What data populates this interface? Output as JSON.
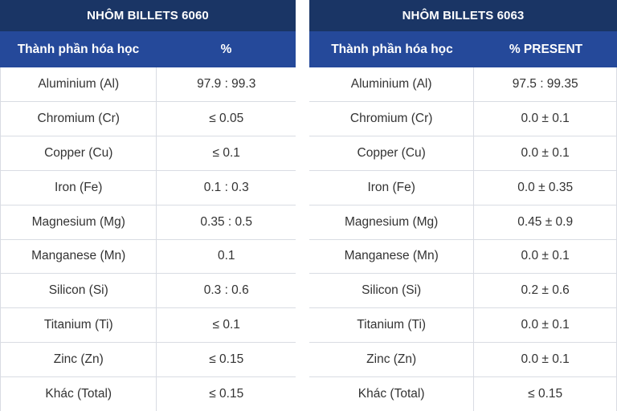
{
  "tables": [
    {
      "title": "NHÔM BILLETS 6060",
      "header": [
        "Thành phần hóa học",
        "%"
      ],
      "rows": [
        [
          "Aluminium (Al)",
          "97.9 : 99.3"
        ],
        [
          "Chromium (Cr)",
          "≤ 0.05"
        ],
        [
          "Copper (Cu)",
          "≤ 0.1"
        ],
        [
          "Iron (Fe)",
          "0.1 : 0.3"
        ],
        [
          "Magnesium (Mg)",
          "0.35 : 0.5"
        ],
        [
          "Manganese (Mn)",
          "0.1"
        ],
        [
          "Silicon (Si)",
          "0.3 : 0.6"
        ],
        [
          "Titanium (Ti)",
          "≤ 0.1"
        ],
        [
          "Zinc (Zn)",
          "≤ 0.15"
        ],
        [
          "Khác (Total)",
          "≤ 0.15"
        ]
      ]
    },
    {
      "title": "NHÔM BILLETS 6063",
      "header": [
        "Thành phần hóa học",
        "% PRESENT"
      ],
      "rows": [
        [
          "Aluminium (Al)",
          "97.5 : 99.35"
        ],
        [
          "Chromium (Cr)",
          "0.0 ± 0.1"
        ],
        [
          "Copper (Cu)",
          "0.0 ± 0.1"
        ],
        [
          "Iron (Fe)",
          "0.0 ± 0.35"
        ],
        [
          "Magnesium (Mg)",
          "0.45 ± 0.9"
        ],
        [
          "Manganese (Mn)",
          "0.0 ± 0.1"
        ],
        [
          "Silicon (Si)",
          "0.2 ± 0.6"
        ],
        [
          "Titanium (Ti)",
          "0.0 ± 0.1"
        ],
        [
          "Zinc (Zn)",
          "0.0 ± 0.1"
        ],
        [
          "Khác (Total)",
          "≤ 0.15"
        ]
      ]
    }
  ],
  "colors": {
    "title_bg": "#1a3565",
    "header_bg": "#25499a",
    "text": "#333333",
    "border": "#d9dce3"
  }
}
